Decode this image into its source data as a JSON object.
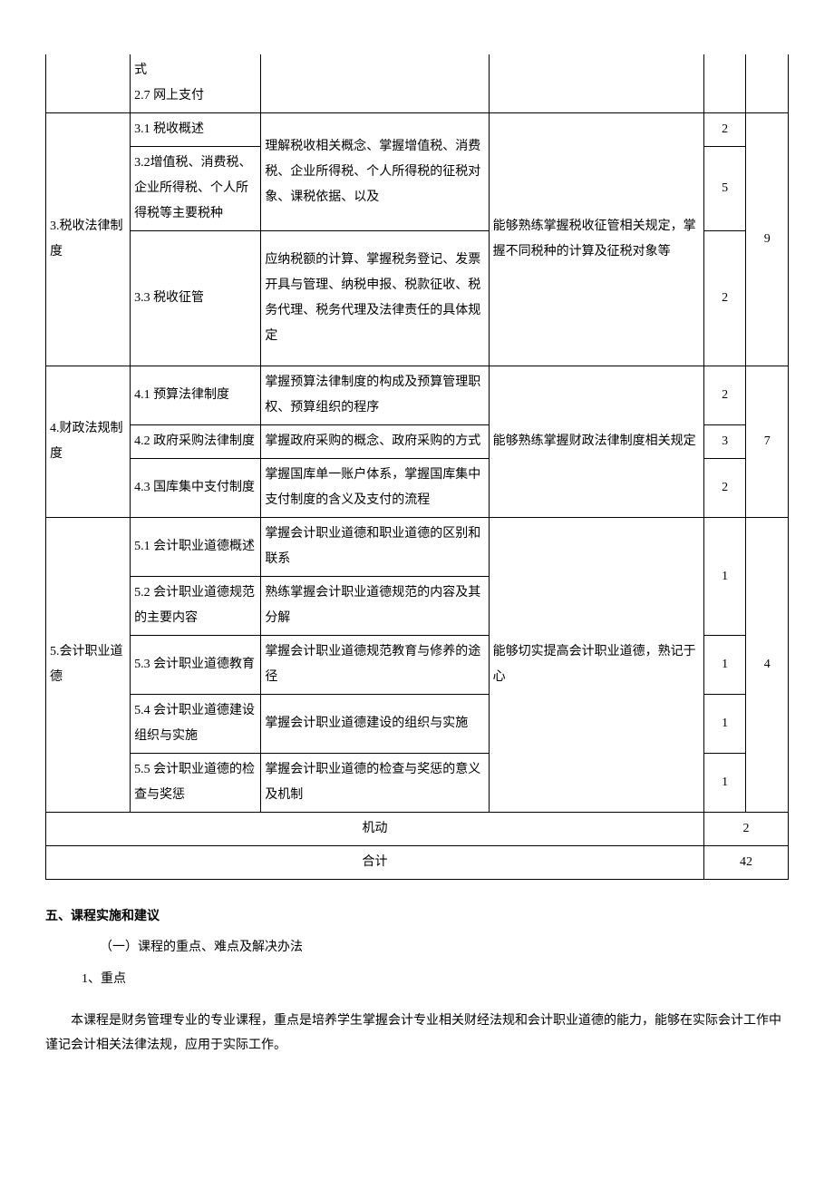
{
  "table": {
    "border_color": "#000000",
    "background_color": "#ffffff",
    "text_color": "#000000",
    "font_size": 14,
    "row0": {
      "col1": "",
      "col2": "式\n2.7 网上支付",
      "col3": "",
      "col4": "",
      "col5": "",
      "col6": ""
    },
    "section3": {
      "title": "3.税收法律制度",
      "r1c2": "3.1 税收概述",
      "r1c3": "理解税收相关概念、掌握增值税、消费税、企业所得税、个人所得税的征税对象、课税依据、以及",
      "r1c5": "2",
      "r2c2": "3.2增值税、消费税、企业所得税、个人所得税等主要税种",
      "r2c5": "5",
      "r3c2": "3.3 税收征管",
      "r3c3": "应纳税额的计算、掌握税务登记、发票开具与管理、纳税申报、税款征收、税务代理、税务代理及法律责任的具体规定",
      "r3c5": "2",
      "c4": "能够熟练掌握税收征管相关规定，掌握不同税种的计算及征税对象等",
      "c6": "9"
    },
    "section4": {
      "title": "4.财政法规制度",
      "r1c2": "4.1 预算法律制度",
      "r1c3": "掌握预算法律制度的构成及预算管理职权、预算组织的程序",
      "r1c5": "2",
      "r2c2": "4.2 政府采购法律制度",
      "r2c3": "掌握政府采购的概念、政府采购的方式",
      "r2c5": "3",
      "r3c2": "4.3 国库集中支付制度",
      "r3c3": "掌握国库单一账户体系，掌握国库集中支付制度的含义及支付的流程",
      "r3c5": "2",
      "c4": "能够熟练掌握财政法律制度相关规定",
      "c6": "7"
    },
    "section5": {
      "title": "5.会计职业道德",
      "r1c2": "5.1 会计职业道德概述",
      "r1c3": "掌握会计职业道德和职业道德的区别和联系",
      "r12c5": "1",
      "r2c2": "5.2 会计职业道德规范的主要内容",
      "r2c3": "熟练掌握会计职业道德规范的内容及其分解",
      "r3c2": "5.3 会计职业道德教育",
      "r3c3": "掌握会计职业道德规范教育与修养的途径",
      "r3c5": "1",
      "r4c2": "5.4 会计职业道德建设组织与实施",
      "r4c3": "掌握会计职业道德建设的组织与实施",
      "r4c5": "1",
      "r5c2": "5.5 会计职业道德的检查与奖惩",
      "r5c3": "掌握会计职业道德的检查与奖惩的意义及机制",
      "r5c5": "1",
      "c4": "能够切实提高会计职业道德，熟记于心",
      "c6": "4"
    },
    "jidong": {
      "label": "机动",
      "value": "2"
    },
    "heji": {
      "label": "合计",
      "value": "42"
    }
  },
  "text": {
    "heading5": "五、课程实施和建议",
    "sub1": "（一）课程的重点、难点及解决办法",
    "item1": "1、重点",
    "para1": "本课程是财务管理专业的专业课程，重点是培养学生掌握会计专业相关财经法规和会计职业道德的能力，能够在实际会计工作中谨记会计相关法律法规，应用于实际工作。"
  }
}
